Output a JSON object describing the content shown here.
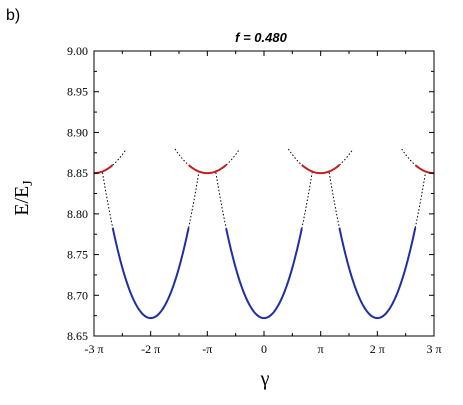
{
  "panel_label": "b)",
  "chart_data": {
    "type": "line",
    "title": "f = 0.480",
    "title_parts": {
      "var": "f",
      "rest": " = 0.480"
    },
    "xlabel": "γ",
    "ylabel": "E/E",
    "ylabel_sub": "J",
    "xlim": [
      -3,
      3
    ],
    "x_unit": "π",
    "ylim": [
      8.65,
      9.0
    ],
    "grid": false,
    "xticks": [
      -3,
      -2,
      -1,
      0,
      1,
      2,
      3
    ],
    "xtick_labels": [
      "-3 π",
      "-2 π",
      "-π",
      "0",
      "π",
      "2 π",
      "3 π"
    ],
    "yticks": [
      8.65,
      8.7,
      8.75,
      8.8,
      8.85,
      8.9,
      8.95,
      9.0
    ],
    "ytick_labels": [
      "8.65",
      "8.70",
      "8.75",
      "8.80",
      "8.85",
      "8.90",
      "8.95",
      "9.00"
    ],
    "series": [
      {
        "style": "solid",
        "color": "#1f2fa0",
        "parabola_vertices_x": [
          -2,
          0,
          2
        ],
        "vertex_y": 8.672,
        "curvature": 0.2473,
        "segments": [
          [
            -2.67,
            -1.33
          ],
          [
            -0.667,
            0.667
          ],
          [
            1.33,
            2.67
          ]
        ]
      },
      {
        "style": "solid",
        "color": "#c41e1e",
        "parabola_vertices_x": [
          -3,
          -1,
          1,
          3
        ],
        "vertex_y": 8.85,
        "curvature": 0.0913,
        "segments": [
          [
            -3,
            -2.67
          ],
          [
            -1.33,
            -0.667
          ],
          [
            0.667,
            1.33
          ],
          [
            2.67,
            3
          ]
        ]
      },
      {
        "style": "dotted",
        "color": "#000000",
        "note_parabolas": "continuation of both families beyond crossings",
        "blue_segments": [
          [
            -2.85,
            -2.67
          ],
          [
            -1.33,
            -1.15
          ],
          [
            -0.85,
            -0.667
          ],
          [
            0.667,
            0.85
          ],
          [
            1.15,
            1.33
          ],
          [
            2.67,
            2.85
          ]
        ],
        "red_segments": [
          [
            -2.67,
            -2.43
          ],
          [
            -1.57,
            -1.33
          ],
          [
            -0.667,
            -0.43
          ],
          [
            0.43,
            0.667
          ],
          [
            1.33,
            1.57
          ],
          [
            2.43,
            2.67
          ]
        ]
      }
    ]
  }
}
